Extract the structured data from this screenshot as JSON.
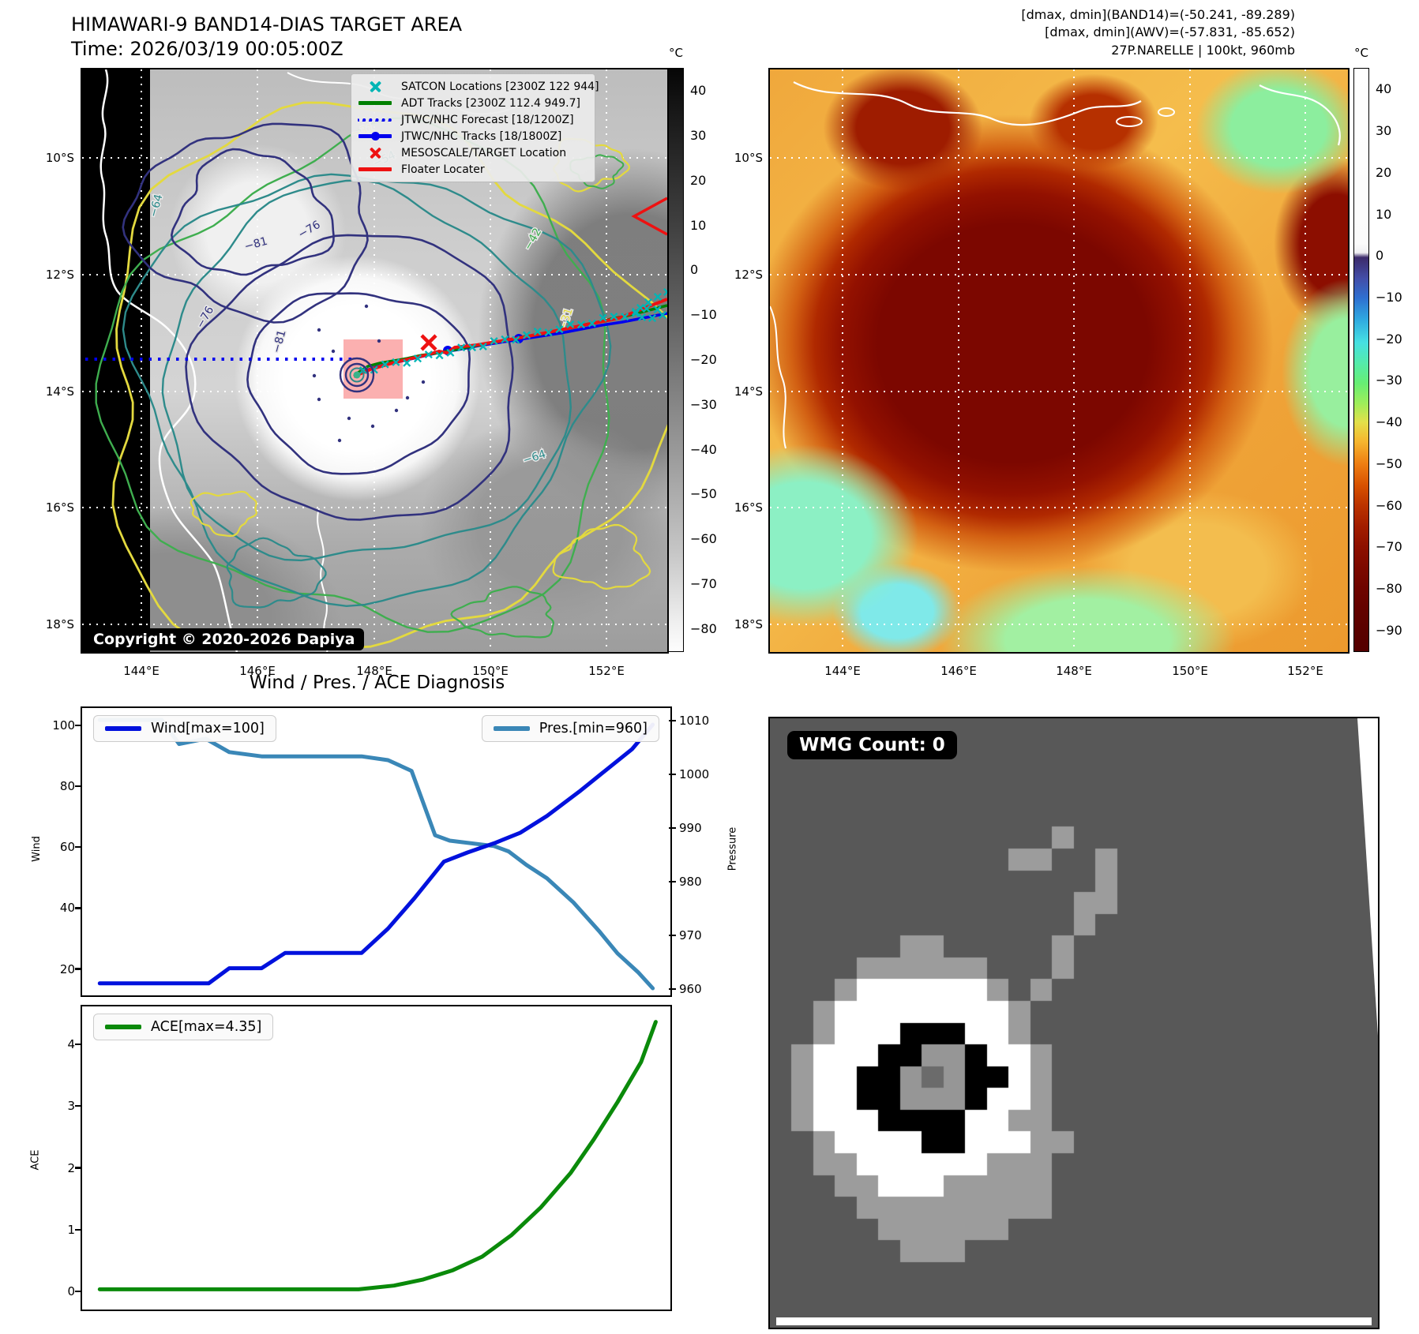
{
  "colors": {
    "wind_line": "#0011dd",
    "pressure_line": "#3a87b7",
    "ace_line": "#0a8a0a",
    "satcon_marker": "#00b5b5",
    "adt_track": "#008000",
    "jtwc_forecast": "#0000ee",
    "jtwc_track": "#0000ee",
    "mesoscale_marker": "#ee1111",
    "floater_line": "#ee1111",
    "target_box": "#f87070",
    "contour_navy": "#32327e",
    "contour_teal": "#2e8b8b",
    "contour_green": "#3fae4f",
    "contour_yellow": "#e3d93f"
  },
  "band14": {
    "title": "HIMAWARI-9 BAND14-DIAS TARGET AREA",
    "time": "Time: 2026/03/19 00:05:00Z",
    "copyright": "Copyright © 2020-2026 Dapiya",
    "legend": [
      {
        "marker": "satcon-x",
        "label": "SATCON Locations [2300Z 122 944]"
      },
      {
        "marker": "adt-line",
        "label": "ADT Tracks [2300Z 112.4 949.7]"
      },
      {
        "marker": "forecast-dotted",
        "label": "JTWC/NHC Forecast [18/1200Z]"
      },
      {
        "marker": "track-line-dot",
        "label": "JTWC/NHC Tracks [18/1800Z]"
      },
      {
        "marker": "mesoscale-x",
        "label": "MESOSCALE/TARGET Location"
      },
      {
        "marker": "floater-line",
        "label": "Floater Locater"
      }
    ],
    "x_ticks": [
      "144°E",
      "146°E",
      "148°E",
      "150°E",
      "152°E"
    ],
    "y_ticks": [
      "10°S",
      "12°S",
      "14°S",
      "16°S",
      "18°S"
    ],
    "colorbar": {
      "unit": "°C",
      "ticks": [
        40,
        30,
        20,
        10,
        0,
        -10,
        -20,
        -30,
        -40,
        -50,
        -60,
        -70,
        -80
      ]
    },
    "contour_labels": [
      "-81",
      "-76",
      "-81",
      "-76",
      "-64",
      "-64",
      "-54",
      "-42",
      "-31",
      "-31"
    ]
  },
  "awv": {
    "header": [
      "[dmax, dmin](BAND14)=(-50.241, -89.289)",
      "[dmax, dmin](AWV)=(-57.831, -85.652)",
      "27P.NARELLE | 100kt, 960mb"
    ],
    "x_ticks": [
      "144°E",
      "146°E",
      "148°E",
      "150°E",
      "152°E"
    ],
    "y_ticks": [
      "10°S",
      "12°S",
      "14°S",
      "16°S",
      "18°S"
    ],
    "colorbar": {
      "unit": "°C",
      "ticks": [
        40,
        30,
        20,
        10,
        0,
        -10,
        -20,
        -30,
        -40,
        -50,
        -60,
        -70,
        -80,
        -90
      ]
    }
  },
  "diagnosis": {
    "title": "Wind / Pres. / ACE Diagnosis",
    "wind_legend": "Wind[max=100]",
    "pres_legend": "Pres.[min=960]",
    "ace_legend": "ACE[max=4.35]",
    "wind_axis_label": "Wind",
    "pressure_axis_label": "Pressure",
    "ace_axis_label": "ACE",
    "wind_ticks": [
      100,
      80,
      60,
      40,
      20
    ],
    "pressure_ticks": [
      1010,
      1000,
      990,
      980,
      970,
      960
    ],
    "ace_ticks": [
      4,
      3,
      2,
      1,
      0
    ]
  },
  "chart_data": [
    {
      "type": "line",
      "title": "Wind / Pres. / ACE Diagnosis (upper panel)",
      "x": "analysis time steps (x axis unlabeled)",
      "dual_axis": true,
      "grid": false,
      "series": [
        {
          "name": "Wind[max=100]",
          "axis": "left",
          "ylabel": "Wind",
          "ylim": [
            10,
            105
          ],
          "yticks": [
            20,
            40,
            60,
            80,
            100
          ],
          "points": [
            [
              0.03,
              15
            ],
            [
              0.215,
              15
            ],
            [
              0.25,
              20
            ],
            [
              0.305,
              20
            ],
            [
              0.345,
              25
            ],
            [
              0.475,
              25
            ],
            [
              0.52,
              33
            ],
            [
              0.565,
              43
            ],
            [
              0.615,
              55
            ],
            [
              0.655,
              58
            ],
            [
              0.7,
              61
            ],
            [
              0.745,
              64.5
            ],
            [
              0.79,
              70
            ],
            [
              0.845,
              78
            ],
            [
              0.89,
              85
            ],
            [
              0.935,
              92
            ],
            [
              0.97,
              100
            ]
          ]
        },
        {
          "name": "Pres.[min=960]",
          "axis": "right",
          "ylabel": "Pressure",
          "ylim": [
            958,
            1012
          ],
          "yticks": [
            960,
            970,
            980,
            990,
            1000,
            1010
          ],
          "points": [
            [
              0.03,
              1010
            ],
            [
              0.135,
              1010
            ],
            [
              0.165,
              1005.5
            ],
            [
              0.21,
              1006.5
            ],
            [
              0.25,
              1004
            ],
            [
              0.305,
              1003.2
            ],
            [
              0.475,
              1003.2
            ],
            [
              0.52,
              1002.5
            ],
            [
              0.56,
              1000.5
            ],
            [
              0.6,
              988.5
            ],
            [
              0.625,
              987.5
            ],
            [
              0.7,
              986.5
            ],
            [
              0.725,
              985.5
            ],
            [
              0.755,
              983
            ],
            [
              0.79,
              980.5
            ],
            [
              0.835,
              976
            ],
            [
              0.88,
              970.5
            ],
            [
              0.91,
              966.5
            ],
            [
              0.945,
              963
            ],
            [
              0.97,
              960
            ]
          ]
        }
      ]
    },
    {
      "type": "line",
      "title": "ACE (lower panel)",
      "x": "analysis time steps (x axis unlabeled)",
      "grid": false,
      "series": [
        {
          "name": "ACE[max=4.35]",
          "ylabel": "ACE",
          "ylim": [
            -0.3,
            4.6
          ],
          "yticks": [
            0,
            1,
            2,
            3,
            4
          ],
          "points": [
            [
              0.03,
              0.02
            ],
            [
              0.47,
              0.02
            ],
            [
              0.53,
              0.08
            ],
            [
              0.58,
              0.18
            ],
            [
              0.63,
              0.33
            ],
            [
              0.68,
              0.55
            ],
            [
              0.73,
              0.9
            ],
            [
              0.78,
              1.35
            ],
            [
              0.83,
              1.9
            ],
            [
              0.87,
              2.45
            ],
            [
              0.91,
              3.05
            ],
            [
              0.95,
              3.7
            ],
            [
              0.975,
              4.35
            ]
          ]
        }
      ]
    }
  ],
  "wmg": {
    "label": "WMG Count: 0",
    "palette": {
      ".": "#585858",
      "g": "#9c9c9c",
      "w": "#ffffff",
      "k": "#000000",
      "m": "#969696",
      "d": "#6b6b6b"
    },
    "bitmap": [
      "............................",
      "............................",
      "............................",
      "............................",
      "............................",
      ".............g..............",
      "...........gg..g............",
      "...............g............",
      "..............gg............",
      "..............g.............",
      "......gg.....g..............",
      "....gggggg...g..............",
      "...gwwwwwwg.g...............",
      "..gwwwwwwwwg................",
      "..gwwwkkkwwg................",
      ".gwwwkkmmkwwg...............",
      ".gwwkkmdmkkwg...............",
      ".gwwkkmmmkwwg...............",
      ".gwwwkkkkwwgg...............",
      "..gwwwwkkwwwgg..............",
      "..ggwwwwwwggg...............",
      "...ggwwwggggg...............",
      "....ggggggggg...............",
      ".....gggggg.................",
      "......ggg...................",
      "............................",
      "............................",
      "............................"
    ]
  }
}
